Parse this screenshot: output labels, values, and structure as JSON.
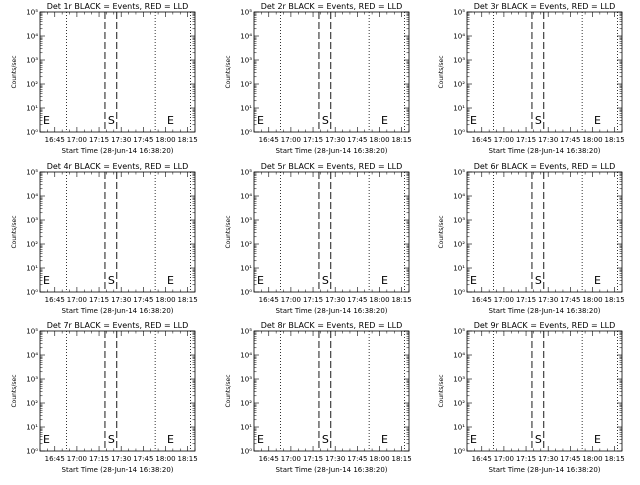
{
  "chart_data": [
    {
      "type": "line",
      "title": "Det 1r BLACK = Events, RED = LLD",
      "ylabel": "Counts/sec",
      "xlabel": "Start Time (28-Jun-14 16:38:20)",
      "x_ticks": [
        "16:45",
        "17:00",
        "17:15",
        "17:30",
        "17:45",
        "18:00",
        "18:15"
      ],
      "y_ticks": [
        "10⁰",
        "10¹",
        "10²",
        "10³",
        "10⁴",
        "10⁵"
      ],
      "ylim": [
        1,
        100000
      ],
      "yscale": "log",
      "dotted_lines": [
        "16:53",
        "17:53",
        "18:17"
      ],
      "dashed_lines": [
        "17:19",
        "17:27"
      ],
      "markers": [
        {
          "label": "E",
          "x": "16:37"
        },
        {
          "label": "S",
          "x": "17:21"
        },
        {
          "label": "E",
          "x": "18:01"
        }
      ]
    },
    {
      "type": "line",
      "title": "Det 2r BLACK = Events, RED = LLD",
      "ylabel": "Counts/sec",
      "xlabel": "Start Time (28-Jun-14 16:38:20)",
      "x_ticks": [
        "16:45",
        "17:00",
        "17:15",
        "17:30",
        "17:45",
        "18:00",
        "18:15"
      ],
      "y_ticks": [
        "10⁰",
        "10¹",
        "10²",
        "10³",
        "10⁴",
        "10⁵"
      ],
      "ylim": [
        1,
        100000
      ],
      "yscale": "log",
      "dotted_lines": [
        "16:53",
        "17:53",
        "18:17"
      ],
      "dashed_lines": [
        "17:19",
        "17:27"
      ],
      "markers": [
        {
          "label": "E",
          "x": "16:37"
        },
        {
          "label": "S",
          "x": "17:21"
        },
        {
          "label": "E",
          "x": "18:01"
        }
      ]
    },
    {
      "type": "line",
      "title": "Det 3r BLACK = Events, RED = LLD",
      "ylabel": "Counts/sec",
      "xlabel": "Start Time (28-Jun-14 16:38:20)",
      "x_ticks": [
        "16:45",
        "17:00",
        "17:15",
        "17:30",
        "17:45",
        "18:00",
        "18:15"
      ],
      "y_ticks": [
        "10⁰",
        "10¹",
        "10²",
        "10³",
        "10⁴",
        "10⁵"
      ],
      "ylim": [
        1,
        100000
      ],
      "yscale": "log",
      "dotted_lines": [
        "16:53",
        "17:53",
        "18:17"
      ],
      "dashed_lines": [
        "17:19",
        "17:27"
      ],
      "markers": [
        {
          "label": "E",
          "x": "16:37"
        },
        {
          "label": "S",
          "x": "17:21"
        },
        {
          "label": "E",
          "x": "18:01"
        }
      ]
    },
    {
      "type": "line",
      "title": "Det 4r BLACK = Events, RED = LLD",
      "ylabel": "Counts/sec",
      "xlabel": "Start Time (28-Jun-14 16:38:20)",
      "x_ticks": [
        "16:45",
        "17:00",
        "17:15",
        "17:30",
        "17:45",
        "18:00",
        "18:15"
      ],
      "y_ticks": [
        "10⁰",
        "10¹",
        "10²",
        "10³",
        "10⁴",
        "10⁵"
      ],
      "ylim": [
        1,
        100000
      ],
      "yscale": "log",
      "dotted_lines": [
        "16:53",
        "17:53",
        "18:17"
      ],
      "dashed_lines": [
        "17:19",
        "17:27"
      ],
      "markers": [
        {
          "label": "E",
          "x": "16:37"
        },
        {
          "label": "S",
          "x": "17:21"
        },
        {
          "label": "E",
          "x": "18:01"
        }
      ]
    },
    {
      "type": "line",
      "title": "Det 5r BLACK = Events, RED = LLD",
      "ylabel": "Counts/sec",
      "xlabel": "Start Time (28-Jun-14 16:38:20)",
      "x_ticks": [
        "16:45",
        "17:00",
        "17:15",
        "17:30",
        "17:45",
        "18:00",
        "18:15"
      ],
      "y_ticks": [
        "10⁰",
        "10¹",
        "10²",
        "10³",
        "10⁴",
        "10⁵"
      ],
      "ylim": [
        1,
        100000
      ],
      "yscale": "log",
      "dotted_lines": [
        "16:53",
        "17:53",
        "18:17"
      ],
      "dashed_lines": [
        "17:19",
        "17:27"
      ],
      "markers": [
        {
          "label": "E",
          "x": "16:37"
        },
        {
          "label": "S",
          "x": "17:21"
        },
        {
          "label": "E",
          "x": "18:01"
        }
      ]
    },
    {
      "type": "line",
      "title": "Det 6r BLACK = Events, RED = LLD",
      "ylabel": "Counts/sec",
      "xlabel": "Start Time (28-Jun-14 16:38:20)",
      "x_ticks": [
        "16:45",
        "17:00",
        "17:15",
        "17:30",
        "17:45",
        "18:00",
        "18:15"
      ],
      "y_ticks": [
        "10⁰",
        "10¹",
        "10²",
        "10³",
        "10⁴",
        "10⁵"
      ],
      "ylim": [
        1,
        100000
      ],
      "yscale": "log",
      "dotted_lines": [
        "16:53",
        "17:53",
        "18:17"
      ],
      "dashed_lines": [
        "17:19",
        "17:27"
      ],
      "markers": [
        {
          "label": "E",
          "x": "16:37"
        },
        {
          "label": "S",
          "x": "17:21"
        },
        {
          "label": "E",
          "x": "18:01"
        }
      ]
    },
    {
      "type": "line",
      "title": "Det 7r BLACK = Events, RED = LLD",
      "ylabel": "Counts/sec",
      "xlabel": "Start Time (28-Jun-14 16:38:20)",
      "x_ticks": [
        "16:45",
        "17:00",
        "17:15",
        "17:30",
        "17:45",
        "18:00",
        "18:15"
      ],
      "y_ticks": [
        "10⁰",
        "10¹",
        "10²",
        "10³",
        "10⁴",
        "10⁵"
      ],
      "ylim": [
        1,
        100000
      ],
      "yscale": "log",
      "dotted_lines": [
        "16:53",
        "17:53",
        "18:17"
      ],
      "dashed_lines": [
        "17:19",
        "17:27"
      ],
      "markers": [
        {
          "label": "E",
          "x": "16:37"
        },
        {
          "label": "S",
          "x": "17:21"
        },
        {
          "label": "E",
          "x": "18:01"
        }
      ]
    },
    {
      "type": "line",
      "title": "Det 8r BLACK = Events, RED = LLD",
      "ylabel": "Counts/sec",
      "xlabel": "Start Time (28-Jun-14 16:38:20)",
      "x_ticks": [
        "16:45",
        "17:00",
        "17:15",
        "17:30",
        "17:45",
        "18:00",
        "18:15"
      ],
      "y_ticks": [
        "10⁰",
        "10¹",
        "10²",
        "10³",
        "10⁴",
        "10⁵"
      ],
      "ylim": [
        1,
        100000
      ],
      "yscale": "log",
      "dotted_lines": [
        "16:53",
        "17:53",
        "18:17"
      ],
      "dashed_lines": [
        "17:19",
        "17:27"
      ],
      "markers": [
        {
          "label": "E",
          "x": "16:37"
        },
        {
          "label": "S",
          "x": "17:21"
        },
        {
          "label": "E",
          "x": "18:01"
        }
      ]
    },
    {
      "type": "line",
      "title": "Det 9r BLACK = Events, RED = LLD",
      "ylabel": "Counts/sec",
      "xlabel": "Start Time (28-Jun-14 16:38:20)",
      "x_ticks": [
        "16:45",
        "17:00",
        "17:15",
        "17:30",
        "17:45",
        "18:00",
        "18:15"
      ],
      "y_ticks": [
        "10⁰",
        "10¹",
        "10²",
        "10³",
        "10⁴",
        "10⁵"
      ],
      "ylim": [
        1,
        100000
      ],
      "yscale": "log",
      "dotted_lines": [
        "16:53",
        "17:53",
        "18:17"
      ],
      "dashed_lines": [
        "17:19",
        "17:27"
      ],
      "markers": [
        {
          "label": "E",
          "x": "16:37"
        },
        {
          "label": "S",
          "x": "17:21"
        },
        {
          "label": "E",
          "x": "18:01"
        }
      ]
    }
  ],
  "colors": {
    "background": "#ffffff",
    "foreground": "#000000"
  }
}
